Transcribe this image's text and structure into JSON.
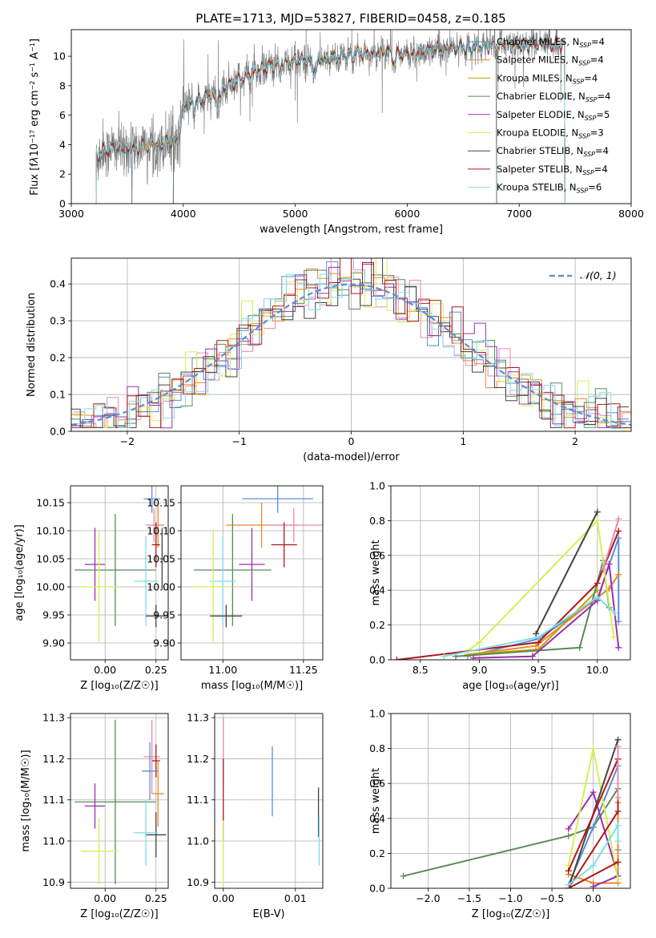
{
  "figure": {
    "title": "PLATE=1713, MJD=53827, FIBERID=0458, z=0.185"
  },
  "colors": {
    "chabrier_miles": "#5b8dd8",
    "salpeter_miles": "#e8892b",
    "kroupa_miles": "#c8a000",
    "chabrier_elodie": "#5a8a5a",
    "salpeter_elodie": "#9a2fb0",
    "kroupa_elodie": "#d8ee55",
    "chabrier_stelib": "#444444",
    "salpeter_stelib": "#b01818",
    "kroupa_stelib": "#80dde8",
    "pink": "#e888b0",
    "gray_data": "#808080",
    "gauss": "#5b8dd8",
    "grid": "#b0b0b0"
  },
  "chart_data": [
    {
      "id": "spectrum",
      "type": "line",
      "xlabel": "wavelength [Angstrom, rest frame]",
      "ylabel_html": "Flux [f<tspan font-style='italic'>λ</tspan>10<tspan baseline-shift='super' font-size='8'>−17</tspan> erg cm<tspan baseline-shift='super' font-size='8'>−2</tspan> s<tspan baseline-shift='super' font-size='8'>−1</tspan> A<tspan baseline-shift='super' font-size='8'>−1</tspan>]",
      "xlim": [
        3000,
        8000
      ],
      "ylim": [
        0,
        11.8
      ],
      "xticks": [
        3000,
        4000,
        5000,
        6000,
        7000,
        8000
      ],
      "yticks": [
        0,
        2,
        4,
        6,
        8,
        10
      ],
      "legend_position": "top-right",
      "legend": [
        {
          "label": "Chabrier MILES, N",
          "sub": "SSP",
          "tail": "=4",
          "color_key": "chabrier_miles"
        },
        {
          "label": "Salpeter MILES, N",
          "sub": "SSP",
          "tail": "=4",
          "color_key": "salpeter_miles"
        },
        {
          "label": "Kroupa MILES, N",
          "sub": "SSP",
          "tail": "=4",
          "color_key": "kroupa_miles"
        },
        {
          "label": "Chabrier ELODIE, N",
          "sub": "SSP",
          "tail": "=4",
          "color_key": "chabrier_elodie"
        },
        {
          "label": "Salpeter ELODIE, N",
          "sub": "SSP",
          "tail": "=5",
          "color_key": "salpeter_elodie"
        },
        {
          "label": "Kroupa ELODIE, N",
          "sub": "SSP",
          "tail": "=3",
          "color_key": "kroupa_elodie"
        },
        {
          "label": "Chabrier STELIB, N",
          "sub": "SSP",
          "tail": "=4",
          "color_key": "chabrier_stelib"
        },
        {
          "label": "Salpeter STELIB, N",
          "sub": "SSP",
          "tail": "=4",
          "color_key": "salpeter_stelib"
        },
        {
          "label": "Kroupa STELIB, N",
          "sub": "SSP",
          "tail": "=6",
          "color_key": "kroupa_stelib"
        }
      ],
      "continuum": [
        [
          3220,
          3.3
        ],
        [
          3350,
          3.8
        ],
        [
          3500,
          3.6
        ],
        [
          3650,
          3.9
        ],
        [
          3800,
          4.0
        ],
        [
          3900,
          4.3
        ],
        [
          4000,
          6.5
        ],
        [
          4100,
          6.9
        ],
        [
          4250,
          7.3
        ],
        [
          4400,
          8.0
        ],
        [
          4600,
          8.8
        ],
        [
          4800,
          9.4
        ],
        [
          5000,
          9.7
        ],
        [
          5200,
          9.8
        ],
        [
          5500,
          10.1
        ],
        [
          5800,
          10.3
        ],
        [
          6000,
          10.1
        ],
        [
          6200,
          10.4
        ],
        [
          6500,
          10.6
        ],
        [
          6800,
          10.7
        ],
        [
          7000,
          10.8
        ],
        [
          7300,
          10.8
        ]
      ],
      "model_ranges": {
        "chabrier_miles": [
          3540,
          7410
        ],
        "salpeter_miles": [
          3540,
          7410
        ],
        "kroupa_miles": [
          3540,
          7410
        ],
        "chabrier_elodie": [
          3910,
          6800
        ],
        "salpeter_elodie": [
          3910,
          6800
        ],
        "kroupa_elodie": [
          3910,
          6800
        ],
        "chabrier_stelib": [
          3220,
          7410
        ],
        "salpeter_stelib": [
          3220,
          7410
        ],
        "kroupa_stelib": [
          3220,
          7410
        ]
      }
    },
    {
      "id": "residuals",
      "type": "histogram",
      "xlabel": "(data-model)/error",
      "ylabel": "Normed distribution",
      "xlim": [
        -2.5,
        2.5
      ],
      "ylim": [
        0,
        0.47
      ],
      "xticks": [
        -2,
        -1,
        0,
        1,
        2
      ],
      "yticks": [
        0.0,
        0.1,
        0.2,
        0.3,
        0.4
      ],
      "legend_position": "top-right",
      "legend": [
        {
          "label": "𝒩(0, 1)",
          "color_key": "gauss",
          "dashed": true
        }
      ],
      "bin_width": 0.1,
      "gaussian": {
        "mu": 0,
        "sigma": 1
      }
    },
    {
      "id": "age_vs_Z",
      "type": "errorbar",
      "xlabel": "Z [log₁₀(Z/Z☉)]",
      "ylabel": "age  [log₁₀(age/yr)]",
      "xlim": [
        -0.17,
        0.31
      ],
      "ylim": [
        9.87,
        10.18
      ],
      "xticks": [
        0.0,
        0.25
      ],
      "yticks": [
        9.9,
        9.95,
        10.0,
        10.05,
        10.1,
        10.15
      ],
      "points": [
        {
          "c": "chabrier_miles",
          "x": 0.23,
          "xe": 0.04,
          "y": 10.157,
          "ye": 0.025
        },
        {
          "c": "salpeter_miles",
          "x": 0.26,
          "xe": 0.03,
          "y": 10.11,
          "ye": 0.04
        },
        {
          "c": "pink",
          "x": 0.24,
          "xe": 0.04,
          "y": 10.11,
          "ye": 0.03
        },
        {
          "c": "salpeter_stelib",
          "x": 0.25,
          "xe": 0.02,
          "y": 10.075,
          "ye": 0.04
        },
        {
          "c": "chabrier_stelib",
          "x": 0.28,
          "xe": 0.01,
          "y": 10.05,
          "ye": 0.055
        },
        {
          "c": "salpeter_elodie",
          "x": -0.05,
          "xe": 0.05,
          "y": 10.04,
          "ye": 0.065
        },
        {
          "c": "chabrier_elodie",
          "x": 0.05,
          "xe": 0.2,
          "y": 10.03,
          "ye": 0.1
        },
        {
          "c": "kroupa_stelib",
          "x": 0.2,
          "xe": 0.06,
          "y": 10.01,
          "ye": 0.08
        },
        {
          "c": "kroupa_elodie",
          "x": -0.03,
          "xe": 0.09,
          "y": 10.0,
          "ye": 0.1
        },
        {
          "c": "chabrier_stelib",
          "x": 0.25,
          "xe": 0.05,
          "y": 9.948,
          "ye": 0.02
        }
      ]
    },
    {
      "id": "age_vs_mass",
      "type": "errorbar",
      "xlabel": "mass [log₁₀(M/M☉)]",
      "ylabel": "",
      "xlim": [
        10.87,
        11.31
      ],
      "ylim": [
        9.87,
        10.18
      ],
      "xticks": [
        11.0,
        11.25
      ],
      "yticks": [
        9.9,
        9.95,
        10.0,
        10.05,
        10.1,
        10.15
      ],
      "points": [
        {
          "c": "chabrier_miles",
          "x": 11.17,
          "xe": 0.11,
          "y": 10.157,
          "ye": 0.025
        },
        {
          "c": "salpeter_miles",
          "x": 11.12,
          "xe": 0.11,
          "y": 10.11,
          "ye": 0.04
        },
        {
          "c": "pink",
          "x": 11.22,
          "xe": 0.09,
          "y": 10.11,
          "ye": 0.03
        },
        {
          "c": "salpeter_stelib",
          "x": 11.19,
          "xe": 0.04,
          "y": 10.075,
          "ye": 0.04
        },
        {
          "c": "salpeter_elodie",
          "x": 11.09,
          "xe": 0.04,
          "y": 10.04,
          "ye": 0.065
        },
        {
          "c": "chabrier_elodie",
          "x": 11.03,
          "xe": 0.12,
          "y": 10.03,
          "ye": 0.1
        },
        {
          "c": "kroupa_stelib",
          "x": 11.0,
          "xe": 0.04,
          "y": 10.01,
          "ye": 0.08
        },
        {
          "c": "kroupa_elodie",
          "x": 10.97,
          "xe": 0.06,
          "y": 10.0,
          "ye": 0.1
        },
        {
          "c": "chabrier_stelib",
          "x": 11.01,
          "xe": 0.05,
          "y": 9.948,
          "ye": 0.02
        }
      ]
    },
    {
      "id": "weight_vs_age",
      "type": "line",
      "xlabel": "age  [log₁₀(age/yr)]",
      "ylabel": "mass weight",
      "xlim": [
        8.25,
        10.28
      ],
      "ylim": [
        0.0,
        1.0
      ],
      "xticks": [
        8.5,
        9.0,
        9.5,
        10.0
      ],
      "yticks": [
        0.0,
        0.2,
        0.4,
        0.6,
        0.8,
        1.0
      ],
      "series": [
        {
          "c": "chabrier_miles",
          "points": [
            [
              8.9,
              0.02
            ],
            [
              9.5,
              0.12
            ],
            [
              10.0,
              0.35
            ],
            [
              10.18,
              0.7
            ],
            [
              10.18,
              0.22
            ]
          ]
        },
        {
          "c": "salpeter_miles",
          "points": [
            [
              8.9,
              0.03
            ],
            [
              9.48,
              0.08
            ],
            [
              10.1,
              0.41
            ],
            [
              10.18,
              0.49
            ]
          ]
        },
        {
          "c": "kroupa_miles",
          "points": [
            [
              8.9,
              0.03
            ],
            [
              9.5,
              0.06
            ],
            [
              10.0,
              0.4
            ]
          ]
        },
        {
          "c": "chabrier_elodie",
          "points": [
            [
              8.8,
              0.02
            ],
            [
              9.85,
              0.07
            ],
            [
              10.05,
              0.57
            ],
            [
              10.1,
              0.3
            ]
          ]
        },
        {
          "c": "salpeter_elodie",
          "points": [
            [
              8.95,
              0.01
            ],
            [
              9.45,
              0.02
            ],
            [
              10.0,
              0.34
            ],
            [
              10.1,
              0.55
            ],
            [
              10.18,
              0.07
            ]
          ]
        },
        {
          "c": "kroupa_elodie",
          "points": [
            [
              8.9,
              0.05
            ],
            [
              9.0,
              0.1
            ],
            [
              10.0,
              0.8
            ],
            [
              10.14,
              0.13
            ]
          ]
        },
        {
          "c": "chabrier_stelib",
          "points": [
            [
              9.48,
              0.15
            ],
            [
              10.0,
              0.85
            ]
          ]
        },
        {
          "c": "salpeter_stelib",
          "points": [
            [
              8.3,
              0.0
            ],
            [
              9.5,
              0.1
            ],
            [
              10.0,
              0.44
            ],
            [
              10.18,
              0.74
            ]
          ]
        },
        {
          "c": "kroupa_stelib",
          "points": [
            [
              8.7,
              0.02
            ],
            [
              9.5,
              0.13
            ],
            [
              10.0,
              0.36
            ],
            [
              10.15,
              0.27
            ]
          ]
        },
        {
          "c": "pink",
          "points": [
            [
              10.05,
              0.52
            ],
            [
              10.18,
              0.81
            ]
          ]
        }
      ]
    },
    {
      "id": "mass_vs_Z",
      "type": "errorbar",
      "xlabel": "Z [log₁₀(Z/Z☉)]",
      "ylabel": "mass [log₁₀(M/M☉)]",
      "xlim": [
        -0.17,
        0.31
      ],
      "ylim": [
        10.885,
        11.31
      ],
      "xticks": [
        0.0,
        0.25
      ],
      "yticks": [
        10.9,
        11.0,
        11.1,
        11.2,
        11.3
      ],
      "points": [
        {
          "c": "pink",
          "x": 0.23,
          "xe": 0.04,
          "y": 11.205,
          "ye": 0.09
        },
        {
          "c": "salpeter_stelib",
          "x": 0.25,
          "xe": 0.02,
          "y": 11.195,
          "ye": 0.04
        },
        {
          "c": "chabrier_miles",
          "x": 0.22,
          "xe": 0.04,
          "y": 11.17,
          "ye": 0.07
        },
        {
          "c": "salpeter_miles",
          "x": 0.26,
          "xe": 0.03,
          "y": 11.115,
          "ye": 0.08
        },
        {
          "c": "chabrier_elodie",
          "x": 0.05,
          "xe": 0.2,
          "y": 11.095,
          "ye": 0.2
        },
        {
          "c": "salpeter_elodie",
          "x": -0.05,
          "xe": 0.05,
          "y": 11.085,
          "ye": 0.055
        },
        {
          "c": "chabrier_stelib",
          "x": 0.25,
          "xe": 0.05,
          "y": 11.015,
          "ye": 0.055
        },
        {
          "c": "kroupa_stelib",
          "x": 0.2,
          "xe": 0.06,
          "y": 11.02,
          "ye": 0.08
        },
        {
          "c": "kroupa_elodie",
          "x": -0.03,
          "xe": 0.09,
          "y": 10.975,
          "ye": 0.08
        }
      ]
    },
    {
      "id": "mass_vs_EBV",
      "type": "errorbar",
      "xlabel": "E(B-V)",
      "ylabel": "",
      "xlim": [
        -0.0012,
        0.0138
      ],
      "ylim": [
        10.885,
        11.31
      ],
      "xticks": [
        0.0,
        0.01
      ],
      "yticks": [
        10.9,
        11.0,
        11.1,
        11.2,
        11.3
      ],
      "points": [
        {
          "c": "pink",
          "x": 0.0,
          "xe": 0.0,
          "y": 11.22,
          "ye": 0.08
        },
        {
          "c": "salpeter_stelib",
          "x": 0.0,
          "xe": 0.0,
          "y": 11.1,
          "ye": 0.1
        },
        {
          "c": "kroupa_elodie",
          "x": 0.0,
          "xe": 0.0,
          "y": 10.97,
          "ye": 0.08
        },
        {
          "c": "chabrier_miles",
          "x": 0.0068,
          "xe": 0.0,
          "y": 11.145,
          "ye": 0.085
        },
        {
          "c": "chabrier_stelib",
          "x": 0.0132,
          "xe": 0.0,
          "y": 11.07,
          "ye": 0.06
        },
        {
          "c": "kroupa_stelib",
          "x": 0.0133,
          "xe": 0.0,
          "y": 11.0,
          "ye": 0.06
        }
      ]
    },
    {
      "id": "weight_vs_Z",
      "type": "line",
      "xlabel": "Z [log₁₀(Z/Z☉)]",
      "ylabel": "mass weight",
      "xlim": [
        -2.45,
        0.45
      ],
      "ylim": [
        0.0,
        1.0
      ],
      "xticks": [
        -2.0,
        -1.5,
        -1.0,
        -0.5,
        0.0
      ],
      "yticks": [
        0.0,
        0.2,
        0.4,
        0.6,
        0.8,
        1.0
      ],
      "series": [
        {
          "c": "chabrier_elodie",
          "points": [
            [
              -2.3,
              0.07
            ],
            [
              -0.3,
              0.3
            ],
            [
              0.0,
              0.35
            ],
            [
              0.3,
              0.57
            ]
          ]
        },
        {
          "c": "chabrier_miles",
          "points": [
            [
              -0.3,
              0.02
            ],
            [
              0.0,
              0.35
            ],
            [
              0.3,
              0.7
            ],
            [
              0.3,
              0.22
            ]
          ]
        },
        {
          "c": "salpeter_miles",
          "points": [
            [
              -0.3,
              0.08
            ],
            [
              0.0,
              0.03
            ],
            [
              0.3,
              0.03
            ],
            [
              0.3,
              0.49
            ]
          ]
        },
        {
          "c": "salpeter_elodie",
          "points": [
            [
              -0.3,
              0.34
            ],
            [
              0.0,
              0.55
            ],
            [
              0.3,
              0.07
            ],
            [
              0.0,
              0.01
            ]
          ]
        },
        {
          "c": "kroupa_elodie",
          "points": [
            [
              -0.3,
              0.13
            ],
            [
              0.0,
              0.8
            ],
            [
              0.3,
              0.05
            ]
          ]
        },
        {
          "c": "chabrier_stelib",
          "points": [
            [
              -0.3,
              0.0
            ],
            [
              0.3,
              0.85
            ]
          ]
        },
        {
          "c": "salpeter_stelib",
          "points": [
            [
              -0.3,
              0.1
            ],
            [
              0.3,
              0.74
            ],
            [
              0.3,
              0.44
            ],
            [
              -0.3,
              0.0
            ],
            [
              0.3,
              0.15
            ]
          ]
        },
        {
          "c": "kroupa_stelib",
          "points": [
            [
              -0.3,
              0.02
            ],
            [
              0.0,
              0.13
            ],
            [
              0.3,
              0.36
            ],
            [
              0.3,
              0.27
            ]
          ]
        },
        {
          "c": "pink",
          "points": [
            [
              0.3,
              0.52
            ],
            [
              0.3,
              0.81
            ]
          ]
        }
      ]
    }
  ]
}
